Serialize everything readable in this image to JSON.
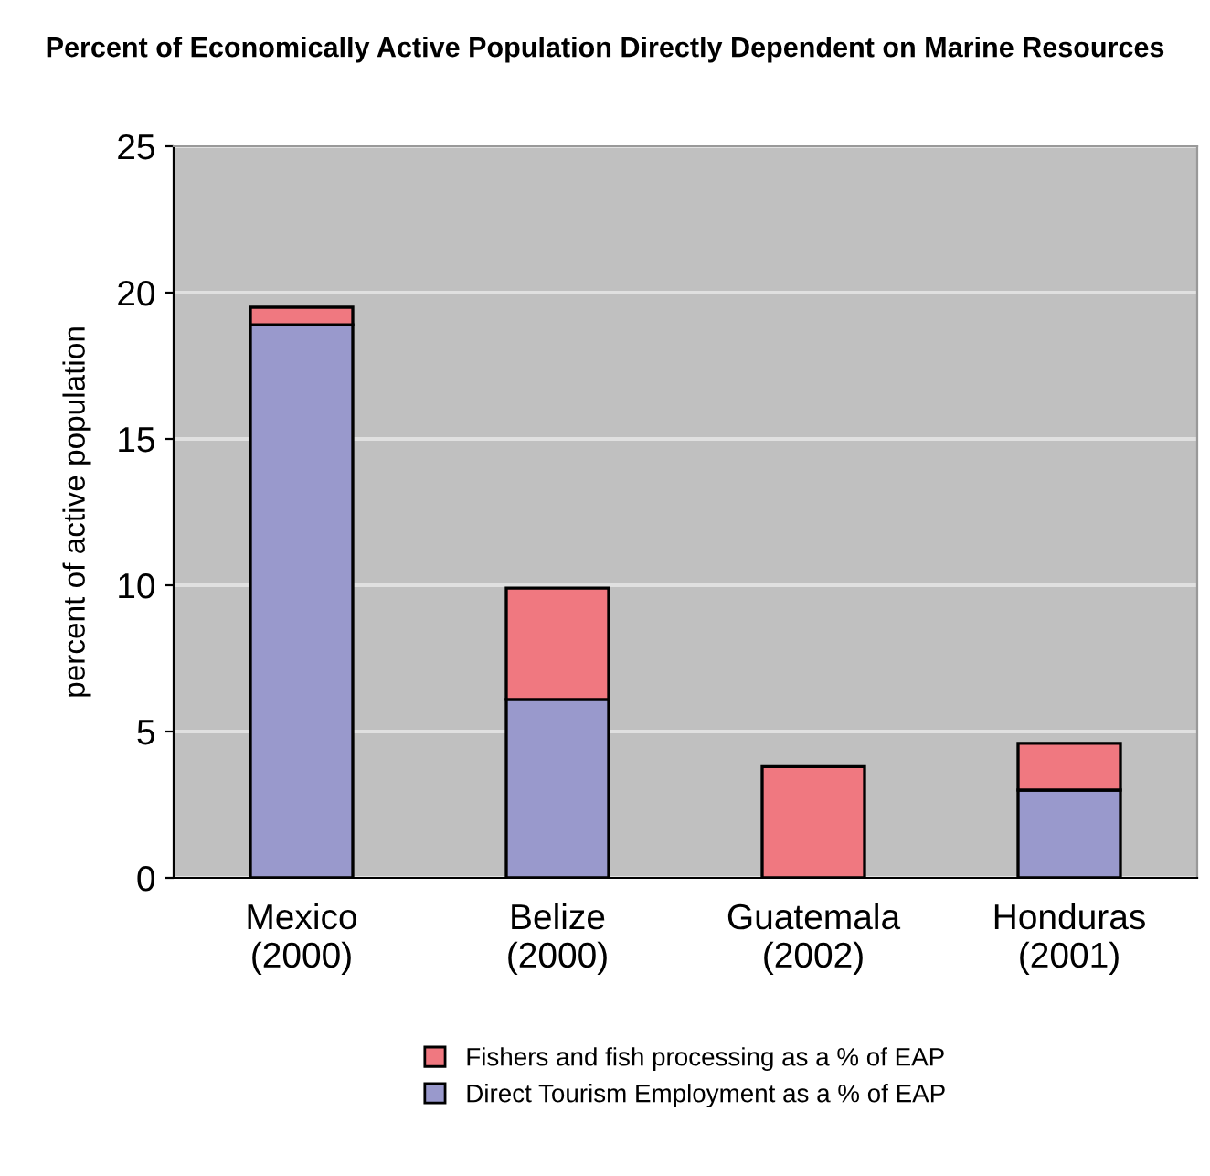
{
  "chart_data": {
    "type": "bar",
    "stacked": true,
    "title": "Percent of Economically Active Population Directly Dependent on Marine Resources",
    "ylabel": "percent of active population",
    "categories": [
      "Mexico\n(2000)",
      "Belize\n(2000)",
      "Guatemala\n(2002)",
      "Honduras\n(2001)"
    ],
    "series": [
      {
        "name": "Direct Tourism Employment as a % of EAP",
        "color": "#9999cc",
        "values": [
          18.9,
          6.1,
          0,
          3.0
        ]
      },
      {
        "name": "Fishers and fish processing as a % of EAP",
        "color": "#f07880",
        "values": [
          0.6,
          3.8,
          3.8,
          1.6
        ]
      }
    ],
    "ylim": [
      0,
      25
    ],
    "yticks": [
      0,
      5,
      10,
      15,
      20,
      25
    ],
    "grid": "y",
    "legend": "bottom"
  }
}
